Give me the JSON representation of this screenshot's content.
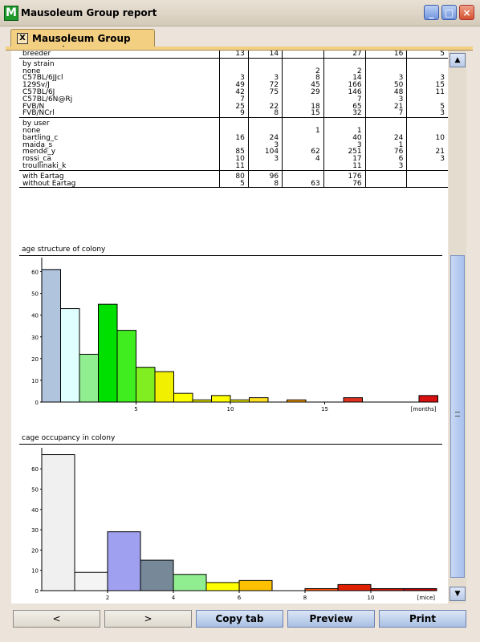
{
  "window": {
    "title": "Mausoleum Group report",
    "app_icon_letter": "M"
  },
  "tab": {
    "label": "Mausoleum Group report",
    "close_glyph": "X"
  },
  "table": {
    "rows": [
      {
        "label": "breeder",
        "cells": [
          "13",
          "14",
          "",
          "27",
          "16",
          "5"
        ],
        "sep": true
      },
      {
        "label": "by strain",
        "cells": [
          "",
          "",
          "",
          "",
          "",
          ""
        ],
        "top": true
      },
      {
        "label": "none",
        "cells": [
          "",
          "",
          "2",
          "2",
          "",
          ""
        ]
      },
      {
        "label": " C57BL/6JJcl",
        "cells": [
          "3",
          "3",
          "8",
          "14",
          "3",
          "3"
        ]
      },
      {
        "label": "129Sv/J",
        "cells": [
          "49",
          "72",
          "45",
          "166",
          "50",
          "15"
        ]
      },
      {
        "label": "C57BL/6J",
        "cells": [
          "42",
          "75",
          "29",
          "146",
          "48",
          "11"
        ]
      },
      {
        "label": "C57BL/6N@Rj",
        "cells": [
          "7",
          "",
          "",
          "7",
          "3",
          ""
        ]
      },
      {
        "label": "FVB/N",
        "cells": [
          "25",
          "22",
          "18",
          "65",
          "21",
          "5"
        ]
      },
      {
        "label": "FVB/NCrl",
        "cells": [
          "9",
          "8",
          "15",
          "32",
          "7",
          "3"
        ],
        "sep": true
      },
      {
        "label": "by user",
        "cells": [
          "",
          "",
          "",
          "",
          "",
          ""
        ],
        "top": true
      },
      {
        "label": "none",
        "cells": [
          "",
          "",
          "1",
          "1",
          "",
          ""
        ]
      },
      {
        "label": "bartling_c",
        "cells": [
          "16",
          "24",
          "",
          "40",
          "24",
          "10"
        ]
      },
      {
        "label": "maida_s",
        "cells": [
          "",
          "3",
          "",
          "3",
          "1",
          ""
        ]
      },
      {
        "label": "mende_y",
        "cells": [
          "85",
          "104",
          "62",
          "251",
          "76",
          "21"
        ]
      },
      {
        "label": "rossi_ca",
        "cells": [
          "10",
          "3",
          "4",
          "17",
          "6",
          "3"
        ]
      },
      {
        "label": "troullinaki_k",
        "cells": [
          "11",
          "",
          "",
          "11",
          "3",
          ""
        ],
        "sep": true
      },
      {
        "label": "with Eartag",
        "cells": [
          "80",
          "96",
          "",
          "176",
          "",
          ""
        ],
        "top": true
      },
      {
        "label": "without Eartag",
        "cells": [
          "5",
          "8",
          "63",
          "76",
          "",
          ""
        ],
        "sep": true
      }
    ]
  },
  "chart_data": [
    {
      "type": "bar",
      "title": "age structure of colony",
      "xlabel": "[months]",
      "x_ticks": [
        5,
        10,
        15
      ],
      "y_ticks": [
        0,
        10,
        20,
        30,
        40,
        50,
        60
      ],
      "ylim": [
        0,
        65
      ],
      "xlim": [
        0,
        21
      ],
      "values": [
        61,
        43,
        22,
        45,
        33,
        16,
        14,
        4,
        1,
        3,
        1,
        2,
        0,
        1,
        0,
        0,
        2,
        0,
        0,
        0,
        3
      ],
      "colors": [
        "#b0c4de",
        "#e0ffff",
        "#90ee90",
        "#00e000",
        "#40ee20",
        "#80ee20",
        "#f0f000",
        "#ffff00",
        "#f8f800",
        "#ffff00",
        "#ffff00",
        "#ffe020",
        "#ffc000",
        "#ffa000",
        "#ff8000",
        "#ff6000",
        "#e03020",
        "#e02010",
        "#d81010",
        "#d00000",
        "#d81010"
      ]
    },
    {
      "type": "bar",
      "title": "cage occupancy in colony",
      "xlabel": "[mice]",
      "x_ticks": [
        2,
        4,
        6,
        8,
        10
      ],
      "y_ticks": [
        0,
        10,
        20,
        30,
        40,
        50,
        60
      ],
      "ylim": [
        0,
        68
      ],
      "xlim": [
        0,
        12
      ],
      "values": [
        67,
        9,
        29,
        15,
        8,
        4,
        5,
        0,
        1,
        3,
        1,
        1
      ],
      "colors": [
        "#f0f0f0",
        "#f4f4f4",
        "#a0a0f0",
        "#778899",
        "#90ee90",
        "#ffff00",
        "#ffc000",
        "#ffa000",
        "#ff5000",
        "#e02000",
        "#d01000",
        "#c00000"
      ]
    }
  ],
  "scrollbar": {
    "up_glyph": "▲",
    "down_glyph": "▼"
  },
  "buttons": {
    "prev": "<",
    "next": ">",
    "copy": "Copy tab",
    "preview": "Preview",
    "print": "Print"
  }
}
